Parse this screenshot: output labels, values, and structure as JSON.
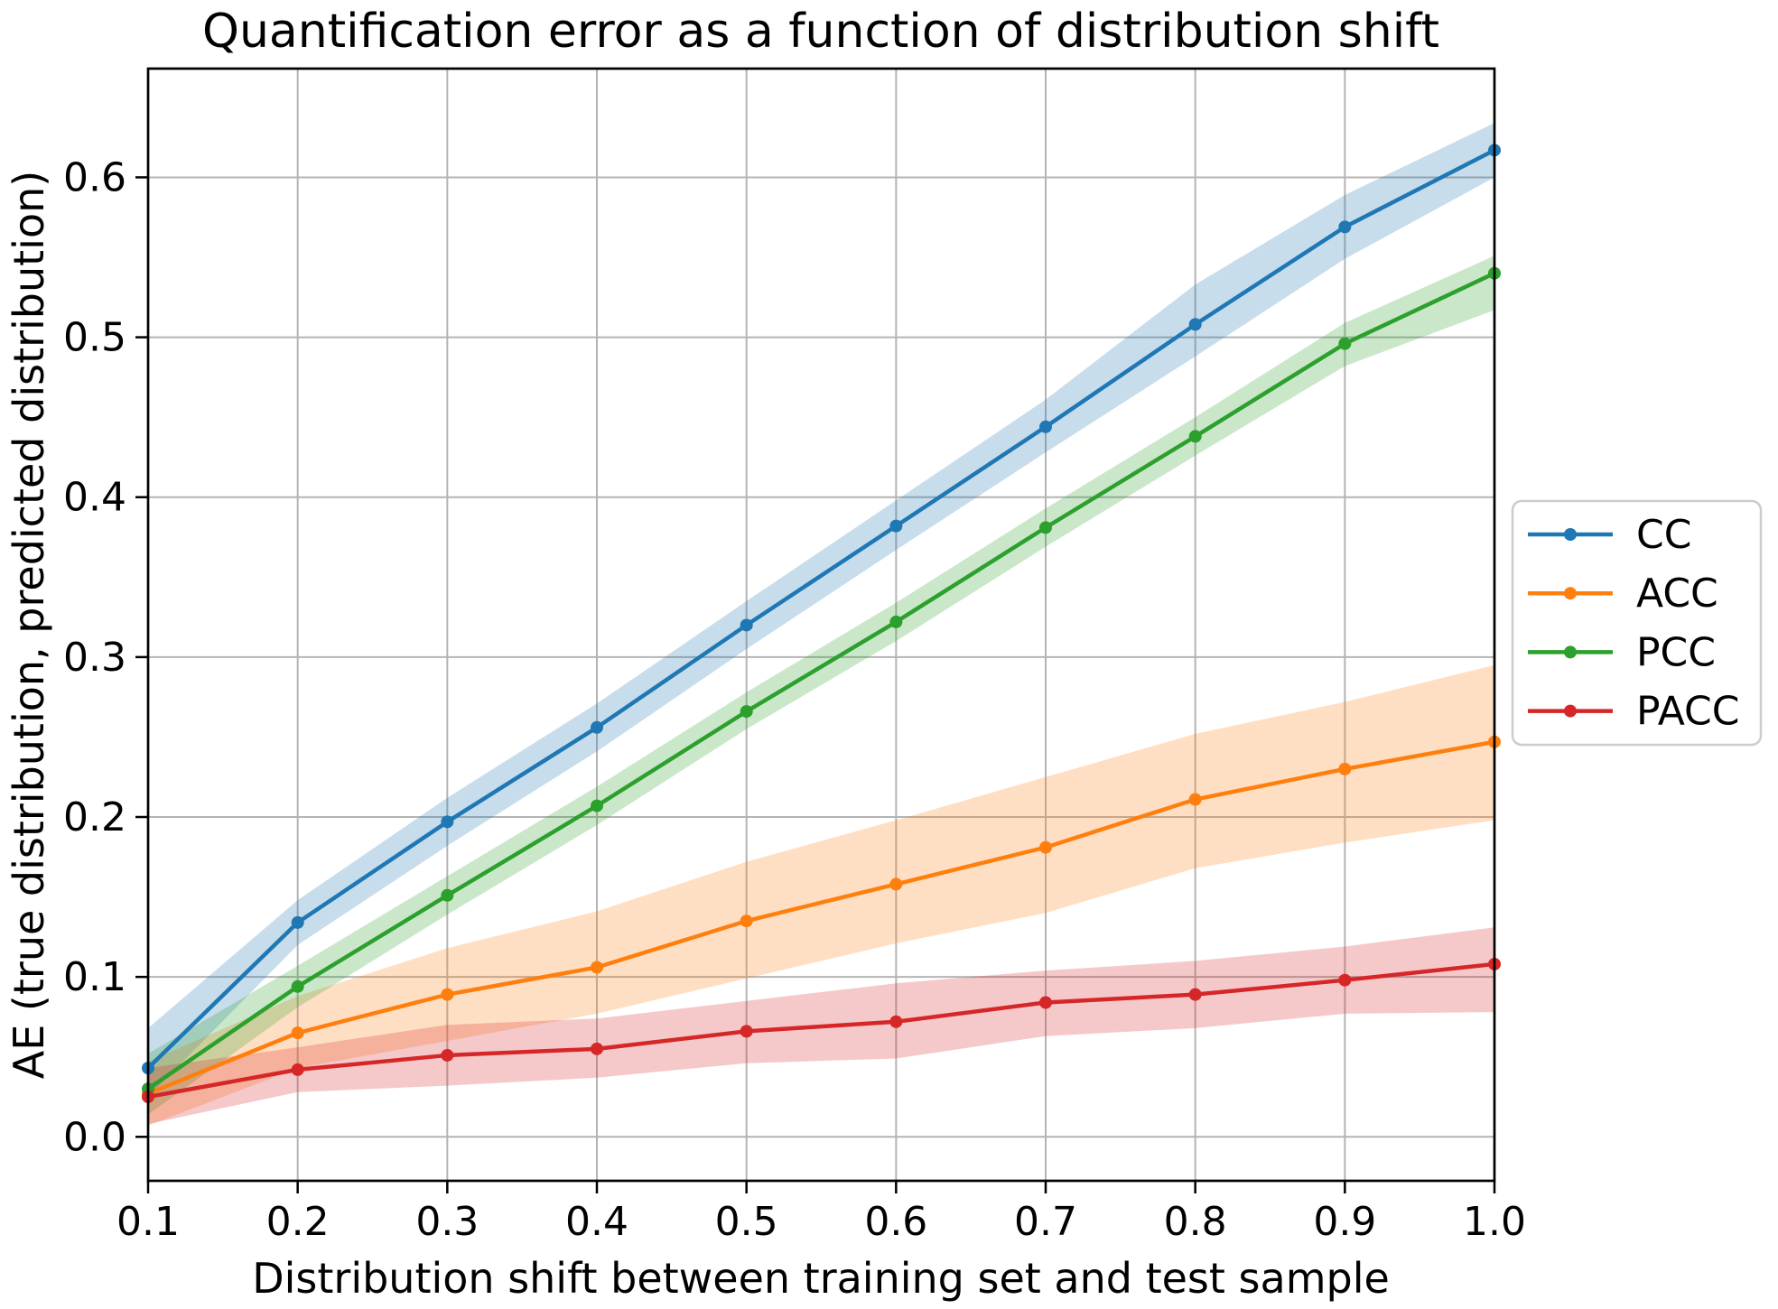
{
  "figure": {
    "background": "#ffffff",
    "spine_color": "#000000",
    "tick_color": "#000000"
  },
  "chart_data": {
    "type": "line",
    "title": "Quantification error as a function of distribution shift",
    "xlabel": "Distribution shift between training set and test sample",
    "ylabel": "AE (true distribution, predicted distribution)",
    "xlim": [
      0.1,
      1.0
    ],
    "ylim": [
      -0.0275,
      0.668
    ],
    "grid": true,
    "grid_color": "#b4b4b4",
    "legend_position": "center right, outside axes",
    "legend_border_color": "#cccccc",
    "band_alpha": 0.25,
    "xticks": [
      0.1,
      0.2,
      0.3,
      0.4,
      0.5,
      0.6,
      0.7,
      0.8,
      0.9,
      1.0
    ],
    "xtick_labels": [
      "0.1",
      "0.2",
      "0.3",
      "0.4",
      "0.5",
      "0.6",
      "0.7",
      "0.8",
      "0.9",
      "1.0"
    ],
    "yticks": [
      0.0,
      0.1,
      0.2,
      0.3,
      0.4,
      0.5,
      0.6
    ],
    "ytick_labels": [
      "0.0",
      "0.1",
      "0.2",
      "0.3",
      "0.4",
      "0.5",
      "0.6"
    ],
    "x": [
      0.1,
      0.2,
      0.3,
      0.4,
      0.5,
      0.6,
      0.7,
      0.8,
      0.9,
      1.0
    ],
    "series": [
      {
        "name": "CC",
        "color": "#1f77b4",
        "values": [
          0.043,
          0.134,
          0.197,
          0.256,
          0.32,
          0.382,
          0.444,
          0.508,
          0.569,
          0.617
        ],
        "band_upper": [
          0.068,
          0.148,
          0.212,
          0.271,
          0.335,
          0.398,
          0.461,
          0.533,
          0.589,
          0.634
        ],
        "band_lower": [
          0.025,
          0.12,
          0.182,
          0.241,
          0.305,
          0.367,
          0.428,
          0.488,
          0.549,
          0.6
        ]
      },
      {
        "name": "ACC",
        "color": "#ff7f0e",
        "values": [
          0.027,
          0.065,
          0.089,
          0.106,
          0.135,
          0.158,
          0.181,
          0.211,
          0.23,
          0.247
        ],
        "band_upper": [
          0.047,
          0.088,
          0.118,
          0.141,
          0.172,
          0.198,
          0.225,
          0.252,
          0.272,
          0.295
        ],
        "band_lower": [
          0.007,
          0.043,
          0.06,
          0.077,
          0.099,
          0.121,
          0.14,
          0.168,
          0.184,
          0.198
        ]
      },
      {
        "name": "PCC",
        "color": "#2ca02c",
        "values": [
          0.03,
          0.094,
          0.151,
          0.207,
          0.266,
          0.322,
          0.381,
          0.438,
          0.496,
          0.54
        ],
        "band_upper": [
          0.052,
          0.107,
          0.163,
          0.219,
          0.278,
          0.334,
          0.393,
          0.45,
          0.509,
          0.551
        ],
        "band_lower": [
          0.014,
          0.081,
          0.139,
          0.195,
          0.255,
          0.31,
          0.369,
          0.426,
          0.482,
          0.517
        ]
      },
      {
        "name": "PACC",
        "color": "#d62728",
        "values": [
          0.025,
          0.042,
          0.051,
          0.055,
          0.066,
          0.072,
          0.084,
          0.089,
          0.098,
          0.108
        ],
        "band_upper": [
          0.043,
          0.056,
          0.07,
          0.074,
          0.085,
          0.096,
          0.104,
          0.11,
          0.119,
          0.131
        ],
        "band_lower": [
          0.008,
          0.028,
          0.032,
          0.037,
          0.046,
          0.049,
          0.063,
          0.068,
          0.077,
          0.078
        ]
      }
    ],
    "legend_entries": [
      "CC",
      "ACC",
      "PCC",
      "PACC"
    ]
  }
}
